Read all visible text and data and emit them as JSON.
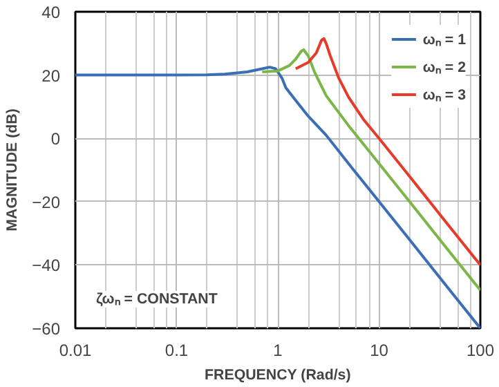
{
  "chart_data": {
    "type": "line",
    "xlabel": "FREQUENCY (Rad/s)",
    "ylabel": "MAGNITUDE (dB)",
    "log": "x",
    "xlim": [
      0.01,
      100
    ],
    "ylim": [
      -60,
      40
    ],
    "xticks": [
      0.01,
      0.1,
      1,
      10,
      100
    ],
    "yticks": [
      -60,
      -40,
      -20,
      0,
      20,
      40
    ],
    "grid": true,
    "legend": "top right",
    "line_style": "solid",
    "marker": "none",
    "annotations": [
      "ζωₙ = CONSTANT"
    ],
    "series": [
      {
        "name": "ωₙ = 1",
        "color": "#3a6fb5",
        "x": [
          0.01,
          0.1,
          0.2,
          0.3,
          0.5,
          0.7,
          0.83,
          0.95,
          1.1,
          1.2,
          1.5,
          2,
          3,
          5,
          10,
          20,
          50,
          100
        ],
        "values": [
          20,
          20,
          20.1,
          20.3,
          21,
          22,
          22.5,
          22,
          19,
          16,
          12,
          7,
          1,
          -8,
          -20,
          -32,
          -48,
          -60
        ]
      },
      {
        "name": "ωₙ = 2",
        "color": "#7ab648",
        "x": [
          0.7,
          1,
          1.3,
          1.5,
          1.7,
          1.8,
          2,
          2.3,
          3,
          5,
          10,
          20,
          50,
          100
        ],
        "values": [
          21,
          21.3,
          23,
          25,
          27.5,
          28,
          26,
          21,
          13.5,
          4,
          -8,
          -20,
          -36,
          -48
        ]
      },
      {
        "name": "ωₙ = 3",
        "color": "#e63a2a",
        "x": [
          1.5,
          2,
          2.4,
          2.7,
          2.85,
          3,
          3.3,
          4,
          5,
          7,
          10,
          20,
          50,
          100
        ],
        "values": [
          22,
          24,
          27,
          31,
          31.5,
          30,
          26,
          19,
          13,
          6,
          0,
          -12,
          -28,
          -40
        ]
      }
    ]
  }
}
